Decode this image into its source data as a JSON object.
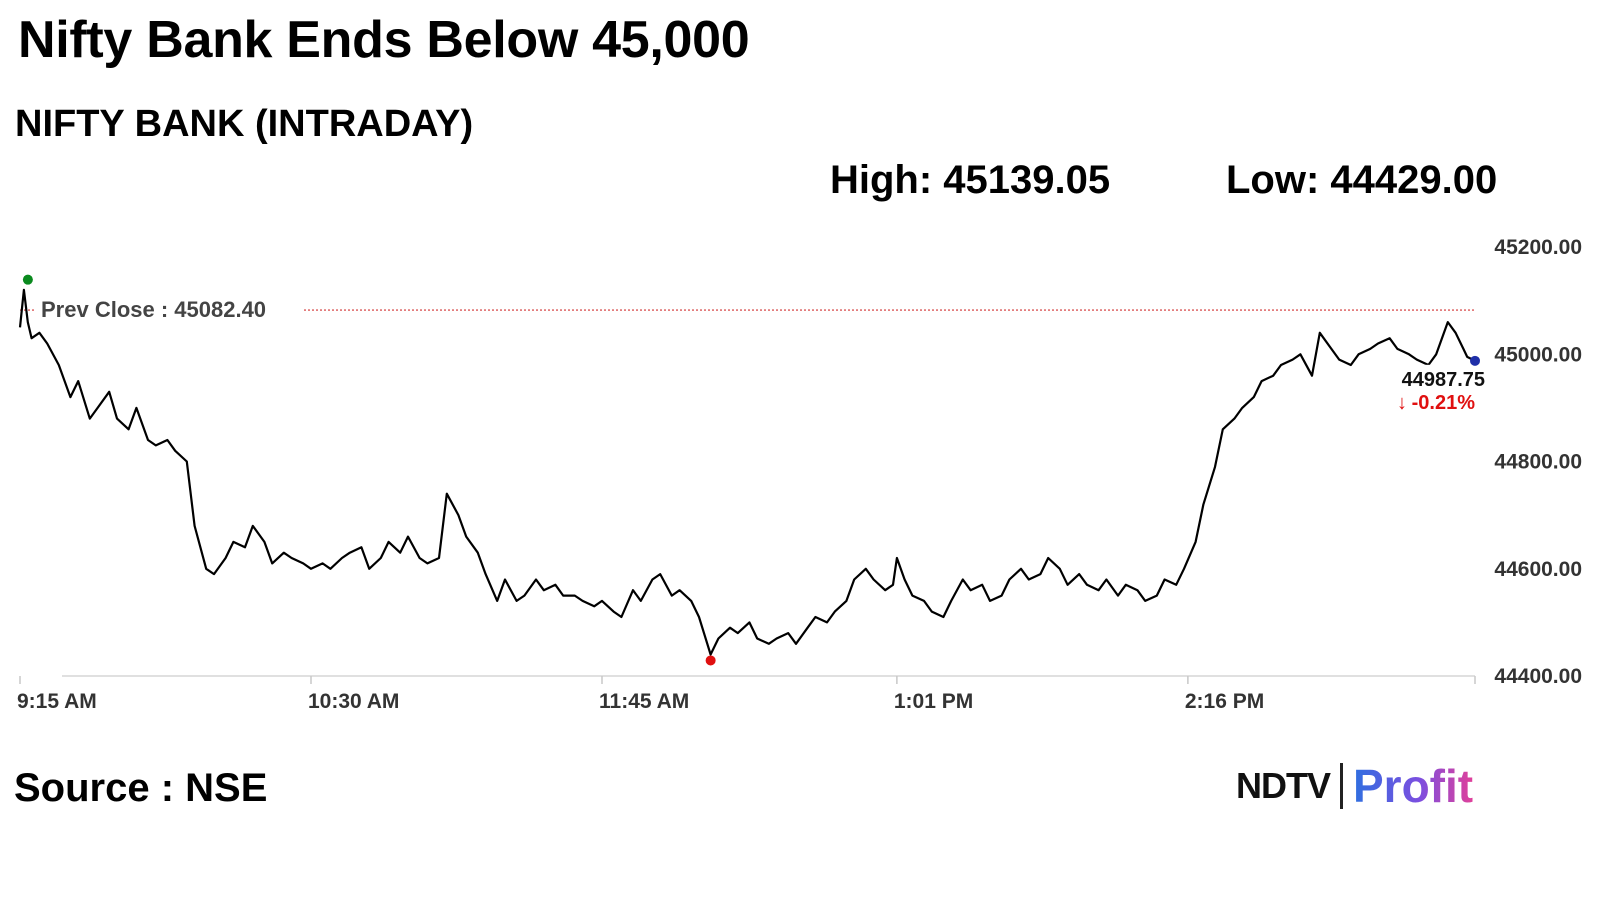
{
  "headline": "Nifty Bank Ends Below 45,000",
  "subtitle": "NIFTY BANK (INTRADAY)",
  "stats": {
    "high": "High: 45139.05",
    "low": "Low: 44429.00"
  },
  "source": "Source : NSE",
  "logo": {
    "ndtv": "NDTV",
    "profit": "Profit"
  },
  "colors": {
    "line": "#000000",
    "prev_close": "#d23030",
    "open_marker": "#0a8a1e",
    "low_marker": "#e01010",
    "last_marker": "#1f2fa8",
    "change_negative": "#e01010"
  },
  "chart_data": {
    "type": "line",
    "title": "NIFTY BANK (INTRADAY)",
    "ylim": [
      44400,
      45200
    ],
    "y_ticks": [
      45200,
      45000,
      44800,
      44600,
      44400
    ],
    "y_tick_labels": [
      "45200.00",
      "45000.00",
      "44800.00",
      "44600.00",
      "44400.00"
    ],
    "x_tick_labels": [
      "9:15 AM",
      "10:30 AM",
      "11:45 AM",
      "1:01 PM",
      "2:16 PM"
    ],
    "x_tick_minutes": [
      0,
      75,
      150,
      226,
      301
    ],
    "x_range_minutes": [
      0,
      375
    ],
    "prev_close": {
      "label": "Prev Close : 45082.40",
      "value": 45082.4
    },
    "last": {
      "value_label": "44987.75",
      "change_label": "-0.21%",
      "value": 44987.75
    },
    "high": 45139.05,
    "low": 44429.0,
    "series": [
      {
        "x_minutes": [
          0,
          1,
          2,
          3,
          5,
          7,
          10,
          13,
          15,
          18,
          20,
          23,
          25,
          28,
          30,
          33,
          35,
          38,
          40,
          43,
          45,
          48,
          50,
          53,
          55,
          58,
          60,
          63,
          65,
          68,
          70,
          73,
          75,
          78,
          80,
          83,
          85,
          88,
          90,
          93,
          95,
          98,
          100,
          103,
          105,
          108,
          110,
          113,
          115,
          118,
          120,
          123,
          125,
          128,
          130,
          133,
          135,
          138,
          140,
          143,
          145,
          148,
          150,
          153,
          155,
          158,
          160,
          163,
          165,
          168,
          170,
          173,
          175,
          178,
          180,
          183,
          185,
          188,
          190,
          193,
          195,
          198,
          200,
          203,
          205,
          208,
          210,
          213,
          215,
          218,
          220,
          223,
          225,
          226,
          228,
          230,
          233,
          235,
          238,
          240,
          243,
          245,
          248,
          250,
          253,
          255,
          258,
          260,
          263,
          265,
          268,
          270,
          273,
          275,
          278,
          280,
          283,
          285,
          288,
          290,
          293,
          295,
          298,
          300,
          303,
          305,
          308,
          310,
          313,
          315,
          318,
          320,
          323,
          325,
          328,
          330,
          333,
          335,
          338,
          340,
          343,
          345,
          348,
          350,
          353,
          355,
          358,
          360,
          363,
          365,
          368,
          370,
          372,
          373,
          375
        ],
        "values": [
          45050,
          45120,
          45060,
          45030,
          45040,
          45020,
          44980,
          44920,
          44950,
          44880,
          44900,
          44930,
          44880,
          44860,
          44900,
          44840,
          44830,
          44840,
          44820,
          44800,
          44680,
          44600,
          44590,
          44620,
          44650,
          44640,
          44680,
          44650,
          44610,
          44630,
          44620,
          44610,
          44600,
          44610,
          44600,
          44620,
          44630,
          44640,
          44600,
          44620,
          44650,
          44630,
          44660,
          44620,
          44610,
          44620,
          44740,
          44700,
          44660,
          44630,
          44590,
          44540,
          44580,
          44540,
          44550,
          44580,
          44560,
          44570,
          44550,
          44550,
          44540,
          44530,
          44540,
          44520,
          44510,
          44560,
          44540,
          44580,
          44590,
          44550,
          44560,
          44540,
          44510,
          44440,
          44470,
          44490,
          44480,
          44500,
          44470,
          44460,
          44470,
          44480,
          44460,
          44490,
          44510,
          44500,
          44520,
          44540,
          44580,
          44600,
          44580,
          44560,
          44570,
          44620,
          44580,
          44550,
          44540,
          44520,
          44510,
          44540,
          44580,
          44560,
          44570,
          44540,
          44550,
          44580,
          44600,
          44580,
          44590,
          44620,
          44600,
          44570,
          44590,
          44570,
          44560,
          44580,
          44550,
          44570,
          44560,
          44540,
          44550,
          44580,
          44570,
          44600,
          44650,
          44720,
          44790,
          44860,
          44880,
          44900,
          44920,
          44950,
          44960,
          44980,
          44990,
          45000,
          44960,
          45040,
          45010,
          44990,
          44980,
          45000,
          45010,
          45020,
          45030,
          45010,
          45000,
          44990,
          44980,
          45000,
          45060,
          45040,
          45010,
          44995,
          44987.75
        ]
      }
    ]
  }
}
